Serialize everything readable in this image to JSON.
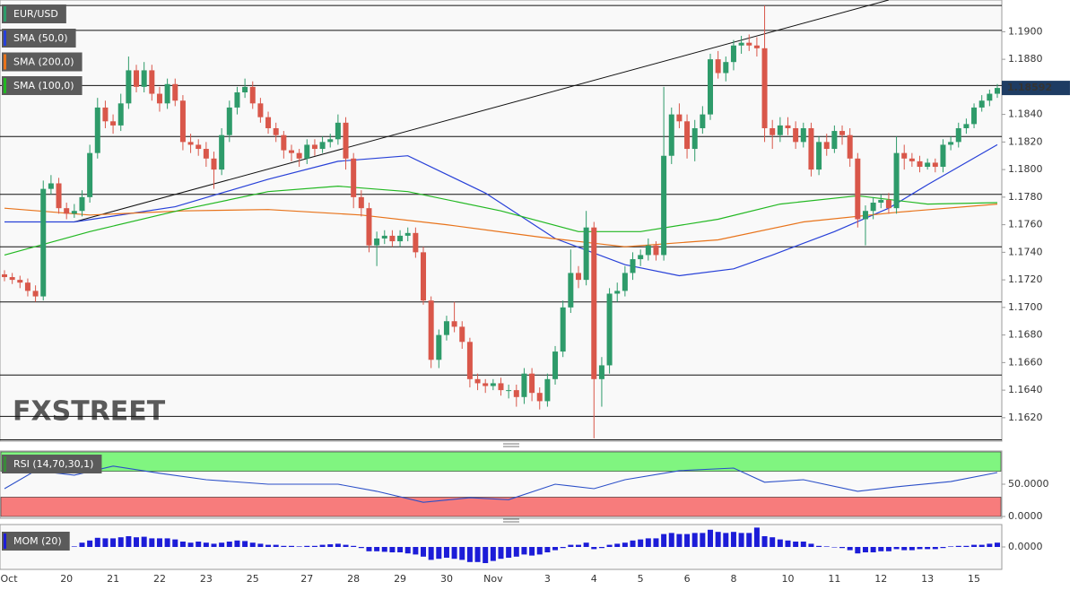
{
  "chart_data": [
    {
      "type": "candlestick",
      "title": "EUR/USD",
      "watermark": "FXSTREET",
      "categories": [
        "Oct",
        null,
        null,
        null,
        null,
        null,
        null,
        null,
        "20",
        null,
        null,
        null,
        null,
        null,
        "21",
        null,
        null,
        null,
        null,
        null,
        "22",
        null,
        null,
        null,
        null,
        null,
        "23",
        null,
        null,
        null,
        null,
        null,
        "25",
        null,
        null,
        null,
        null,
        null,
        null,
        "27",
        null,
        null,
        null,
        null,
        null,
        "28",
        null,
        null,
        null,
        null,
        null,
        "29",
        null,
        null,
        null,
        null,
        null,
        "30",
        null,
        null,
        null,
        null,
        null,
        "Nov",
        null,
        null,
        null,
        null,
        null,
        null,
        "3",
        null,
        null,
        null,
        null,
        null,
        "4",
        null,
        null,
        null,
        null,
        null,
        "5",
        null,
        null,
        null,
        null,
        null,
        "6",
        null,
        null,
        null,
        null,
        null,
        "8",
        null,
        null,
        null,
        null,
        null,
        null,
        "10",
        null,
        null,
        null,
        null,
        null,
        "11",
        null,
        null,
        null,
        null,
        null,
        "12",
        null,
        null,
        null,
        null,
        null,
        "13",
        null,
        null,
        null,
        null,
        null,
        "15",
        null,
        null,
        null
      ],
      "open": [
        1.1724,
        1.1722,
        1.172,
        1.1718,
        1.1712,
        1.1708,
        1.1786,
        1.179,
        1.1772,
        1.1768,
        1.177,
        1.178,
        1.1812,
        1.1845,
        1.1835,
        1.1832,
        1.1848,
        1.1872,
        1.186,
        1.1872,
        1.1855,
        1.1848,
        1.1862,
        1.185,
        1.182,
        1.1818,
        1.1815,
        1.1808,
        1.18,
        1.1825,
        1.1845,
        1.1856,
        1.186,
        1.1848,
        1.1838,
        1.183,
        1.1825,
        1.1814,
        1.1812,
        1.1808,
        1.1818,
        1.1815,
        1.182,
        1.1822,
        1.1834,
        1.1808,
        1.178,
        1.1772,
        1.1745,
        1.175,
        1.1752,
        1.1748,
        1.1752,
        1.1754,
        1.174,
        1.1705,
        1.1662,
        1.168,
        1.169,
        1.1686,
        1.1675,
        1.1648,
        1.1645,
        1.1643,
        1.1645,
        1.164,
        1.164,
        1.1635,
        1.1652,
        1.1638,
        1.1632,
        1.1648,
        1.1668,
        1.17,
        1.1725,
        1.172,
        1.1758,
        1.1648,
        1.1658,
        1.171,
        1.1712,
        1.1725,
        1.1735,
        1.1738,
        1.1745,
        1.1738,
        1.181,
        1.184,
        1.1835,
        1.1815,
        1.183,
        1.184,
        1.188,
        1.187,
        1.1878,
        1.189,
        1.1892,
        1.189,
        1.1888,
        1.183,
        1.1825,
        1.1832,
        1.183,
        1.182,
        1.183,
        1.18,
        1.182,
        1.1815,
        1.1828,
        1.1825,
        1.1808,
        1.1764,
        1.177,
        1.1776,
        1.1778,
        1.1772,
        1.1812,
        1.1808,
        1.1806,
        1.1802,
        1.1805,
        1.1802,
        1.1818,
        1.182,
        1.183,
        1.1833,
        1.1845,
        1.185,
        1.1855
      ],
      "high": [
        1.1727,
        1.1725,
        1.1723,
        1.1721,
        1.1716,
        1.1792,
        1.1796,
        1.1794,
        1.1776,
        1.1775,
        1.1785,
        1.1818,
        1.1852,
        1.185,
        1.184,
        1.1855,
        1.1882,
        1.1876,
        1.1878,
        1.1876,
        1.186,
        1.1866,
        1.1866,
        1.1854,
        1.1826,
        1.1822,
        1.182,
        1.1813,
        1.183,
        1.185,
        1.186,
        1.1866,
        1.1864,
        1.1852,
        1.1842,
        1.1834,
        1.1828,
        1.1818,
        1.1815,
        1.1822,
        1.1822,
        1.1824,
        1.1826,
        1.184,
        1.1838,
        1.1812,
        1.1785,
        1.1776,
        1.1755,
        1.1756,
        1.1756,
        1.1756,
        1.1758,
        1.1758,
        1.1744,
        1.1708,
        1.1684,
        1.1694,
        1.1704,
        1.169,
        1.1678,
        1.1652,
        1.1648,
        1.1648,
        1.1649,
        1.1644,
        1.1644,
        1.1656,
        1.1656,
        1.1642,
        1.1652,
        1.1672,
        1.1705,
        1.1742,
        1.173,
        1.177,
        1.1762,
        1.1664,
        1.1714,
        1.1718,
        1.173,
        1.174,
        1.1742,
        1.175,
        1.1748,
        1.186,
        1.1845,
        1.1848,
        1.184,
        1.1836,
        1.1846,
        1.1884,
        1.1886,
        1.1882,
        1.1894,
        1.1897,
        1.1898,
        1.1896,
        1.1919,
        1.1836,
        1.1838,
        1.1838,
        1.1835,
        1.1834,
        1.1834,
        1.1824,
        1.1826,
        1.1832,
        1.1832,
        1.183,
        1.1812,
        1.1774,
        1.178,
        1.1782,
        1.1783,
        1.1824,
        1.1818,
        1.1812,
        1.181,
        1.1808,
        1.1808,
        1.1822,
        1.1824,
        1.1834,
        1.1837,
        1.1848,
        1.1854,
        1.1858,
        1.1862
      ],
      "low": [
        1.1719,
        1.1717,
        1.1714,
        1.1708,
        1.1704,
        1.1705,
        1.1782,
        1.1768,
        1.1764,
        1.1765,
        1.1766,
        1.1776,
        1.1808,
        1.183,
        1.1826,
        1.1828,
        1.1844,
        1.1856,
        1.1856,
        1.185,
        1.1842,
        1.1844,
        1.1846,
        1.1814,
        1.1812,
        1.181,
        1.1802,
        1.1786,
        1.1796,
        1.182,
        1.184,
        1.1852,
        1.1844,
        1.1834,
        1.1826,
        1.182,
        1.1808,
        1.1806,
        1.1802,
        1.1804,
        1.181,
        1.1812,
        1.1816,
        1.1818,
        1.18,
        1.1772,
        1.1766,
        1.174,
        1.173,
        1.1746,
        1.1744,
        1.1744,
        1.1748,
        1.1736,
        1.1702,
        1.1656,
        1.1656,
        1.1676,
        1.1682,
        1.167,
        1.1642,
        1.164,
        1.1638,
        1.164,
        1.1636,
        1.1634,
        1.1628,
        1.163,
        1.1632,
        1.1626,
        1.1628,
        1.1644,
        1.1664,
        1.1696,
        1.1714,
        1.1716,
        1.1605,
        1.1628,
        1.1652,
        1.1704,
        1.1708,
        1.172,
        1.173,
        1.1734,
        1.1734,
        1.1734,
        1.1804,
        1.183,
        1.1808,
        1.1806,
        1.1826,
        1.1836,
        1.1866,
        1.1864,
        1.1872,
        1.1884,
        1.1886,
        1.1882,
        1.182,
        1.1815,
        1.182,
        1.1825,
        1.1815,
        1.1816,
        1.1795,
        1.1796,
        1.181,
        1.1812,
        1.1818,
        1.1802,
        1.1758,
        1.1745,
        1.1764,
        1.1772,
        1.1768,
        1.1768,
        1.18,
        1.1802,
        1.1798,
        1.18,
        1.1798,
        1.1798,
        1.1814,
        1.1816,
        1.1826,
        1.183,
        1.1842,
        1.1846,
        1.1852
      ],
      "close": [
        1.1722,
        1.172,
        1.1718,
        1.1712,
        1.1708,
        1.1786,
        1.179,
        1.1772,
        1.1768,
        1.177,
        1.178,
        1.1812,
        1.1845,
        1.1835,
        1.1832,
        1.1848,
        1.1872,
        1.186,
        1.1872,
        1.1855,
        1.1848,
        1.1862,
        1.185,
        1.182,
        1.1818,
        1.1815,
        1.1808,
        1.18,
        1.1825,
        1.1845,
        1.1856,
        1.186,
        1.1848,
        1.1838,
        1.183,
        1.1825,
        1.1814,
        1.1812,
        1.1808,
        1.1818,
        1.1815,
        1.182,
        1.1822,
        1.1834,
        1.1808,
        1.178,
        1.1772,
        1.1745,
        1.175,
        1.1752,
        1.1748,
        1.1752,
        1.1754,
        1.174,
        1.1705,
        1.1662,
        1.168,
        1.169,
        1.1686,
        1.1675,
        1.1648,
        1.1645,
        1.1643,
        1.1645,
        1.164,
        1.164,
        1.1635,
        1.1652,
        1.1638,
        1.1632,
        1.1648,
        1.1668,
        1.17,
        1.1725,
        1.172,
        1.1758,
        1.1648,
        1.1658,
        1.171,
        1.1712,
        1.1725,
        1.1735,
        1.1738,
        1.1745,
        1.1738,
        1.181,
        1.184,
        1.1835,
        1.1815,
        1.183,
        1.184,
        1.188,
        1.187,
        1.1878,
        1.189,
        1.1892,
        1.189,
        1.1888,
        1.183,
        1.1825,
        1.1832,
        1.183,
        1.182,
        1.183,
        1.18,
        1.182,
        1.1815,
        1.1828,
        1.1825,
        1.1808,
        1.1764,
        1.177,
        1.1776,
        1.1778,
        1.1772,
        1.1812,
        1.1808,
        1.1806,
        1.1802,
        1.1805,
        1.1802,
        1.1818,
        1.182,
        1.183,
        1.1833,
        1.1845,
        1.185,
        1.1855,
        1.18592
      ],
      "up_color": "#2e9b6a",
      "down_color": "#d9574a",
      "ylim": [
        1.1603,
        1.1923
      ],
      "yticks": [
        {
          "value": 1.19,
          "label": "1.1900"
        },
        {
          "value": 1.188,
          "label": "1.1880"
        },
        {
          "value": 1.186,
          "label": "1.1860"
        },
        {
          "value": 1.184,
          "label": "1.1840"
        },
        {
          "value": 1.182,
          "label": "1.1820"
        },
        {
          "value": 1.18,
          "label": "1.1800"
        },
        {
          "value": 1.178,
          "label": "1.1780"
        },
        {
          "value": 1.176,
          "label": "1.1760"
        },
        {
          "value": 1.174,
          "label": "1.1740"
        },
        {
          "value": 1.172,
          "label": "1.1720"
        },
        {
          "value": 1.17,
          "label": "1.1700"
        },
        {
          "value": 1.168,
          "label": "1.1680"
        },
        {
          "value": 1.166,
          "label": "1.1660"
        },
        {
          "value": 1.164,
          "label": "1.1640"
        },
        {
          "value": 1.162,
          "label": "1.1620"
        }
      ],
      "levels": [
        1.1919,
        1.1901,
        1.1861,
        1.1824,
        1.1782,
        1.1744,
        1.1704,
        1.1651,
        1.1621,
        1.1604
      ],
      "trendline": {
        "x": [
          9,
          114
        ],
        "values": [
          1.1762,
          1.1923
        ]
      },
      "series": [
        {
          "name": "SMA (50,0)",
          "color": "#2740d8",
          "x": [
            0,
            9,
            22,
            34,
            43,
            52,
            62,
            71,
            80,
            87,
            94,
            99,
            107,
            114,
            119,
            128
          ],
          "values": [
            1.1762,
            1.1762,
            1.1773,
            1.1793,
            1.1806,
            1.181,
            1.1783,
            1.175,
            1.1731,
            1.1723,
            1.1728,
            1.1738,
            1.1755,
            1.1772,
            1.1789,
            1.1818
          ]
        },
        {
          "name": "SMA (200,0)",
          "color": "#e8731a",
          "x": [
            0,
            11,
            23,
            34,
            46,
            57,
            69,
            80,
            92,
            103,
            115,
            128
          ],
          "values": [
            1.1772,
            1.1767,
            1.177,
            1.1771,
            1.1767,
            1.176,
            1.1751,
            1.1744,
            1.1749,
            1.1762,
            1.1769,
            1.1775
          ]
        },
        {
          "name": "SMA (100,0)",
          "color": "#22b822",
          "x": [
            0,
            11,
            23,
            34,
            43,
            52,
            64,
            74,
            82,
            92,
            100,
            110,
            119,
            128
          ],
          "values": [
            1.1738,
            1.1755,
            1.1771,
            1.1784,
            1.1788,
            1.1784,
            1.177,
            1.1755,
            1.1755,
            1.1764,
            1.1775,
            1.1781,
            1.1775,
            1.1776
          ]
        }
      ]
    },
    {
      "type": "rsi",
      "title": "RSI (14,70,30,1)",
      "color": "#2b4fc8",
      "x": [
        0,
        4,
        9,
        14,
        20,
        26,
        34,
        43,
        48,
        54,
        60,
        65,
        71,
        76,
        80,
        87,
        94,
        98,
        103,
        110,
        115,
        122,
        128
      ],
      "values": [
        43,
        71,
        64,
        78,
        67,
        57,
        50,
        50,
        39,
        22,
        29,
        26,
        50,
        43,
        57,
        71,
        75,
        53,
        57,
        39,
        46,
        54,
        68
      ],
      "ylim": [
        0,
        100
      ],
      "yticks": [
        {
          "value": 50,
          "label": "50.0000"
        },
        {
          "value": 0,
          "label": "0.0000"
        }
      ],
      "levels": [
        70,
        30
      ],
      "zone_colors": [
        "#80f580",
        "#f77c7c"
      ]
    },
    {
      "type": "momentum",
      "title": "MOM (20)",
      "color": "#1c1cd8",
      "values": [
        0.0002,
        0.0003,
        0.0001,
        -0.0002,
        -0.0003,
        0.0006,
        0.0008,
        0.0004,
        0.0003,
        0.0005,
        0.004,
        0.006,
        0.0085,
        0.008,
        0.008,
        0.009,
        0.01,
        0.009,
        0.0095,
        0.008,
        0.008,
        0.008,
        0.007,
        0.005,
        0.004,
        0.005,
        0.004,
        0.003,
        0.004,
        0.005,
        0.006,
        0.0055,
        0.004,
        0.003,
        0.002,
        0.002,
        0.001,
        0.001,
        0.0005,
        0.001,
        0.001,
        0.002,
        0.0025,
        0.003,
        0.002,
        0.001,
        -0.001,
        -0.004,
        -0.004,
        -0.0045,
        -0.005,
        -0.005,
        -0.006,
        -0.007,
        -0.009,
        -0.012,
        -0.011,
        -0.01,
        -0.011,
        -0.012,
        -0.014,
        -0.014,
        -0.015,
        -0.013,
        -0.011,
        -0.01,
        -0.009,
        -0.007,
        -0.008,
        -0.007,
        -0.005,
        -0.003,
        -0.001,
        0.002,
        0.002,
        0.004,
        -0.002,
        -0.001,
        0.002,
        0.003,
        0.004,
        0.006,
        0.007,
        0.008,
        0.008,
        0.012,
        0.013,
        0.012,
        0.012,
        0.013,
        0.013,
        0.016,
        0.014,
        0.013,
        0.014,
        0.013,
        0.013,
        0.018,
        0.01,
        0.009,
        0.007,
        0.006,
        0.005,
        0.005,
        0.003,
        0.001,
        0.0005,
        0,
        -0.001,
        -0.003,
        -0.006,
        -0.005,
        -0.005,
        -0.004,
        -0.004,
        -0.002,
        -0.003,
        -0.003,
        -0.002,
        -0.002,
        -0.002,
        -0.001,
        0.0005,
        0.001,
        0.001,
        0.002,
        0.002,
        0.003,
        0.004
      ],
      "ylim": [
        -0.02,
        0.02
      ],
      "yticks": [
        {
          "value": 0,
          "label": "0.0000"
        }
      ]
    }
  ]
}
